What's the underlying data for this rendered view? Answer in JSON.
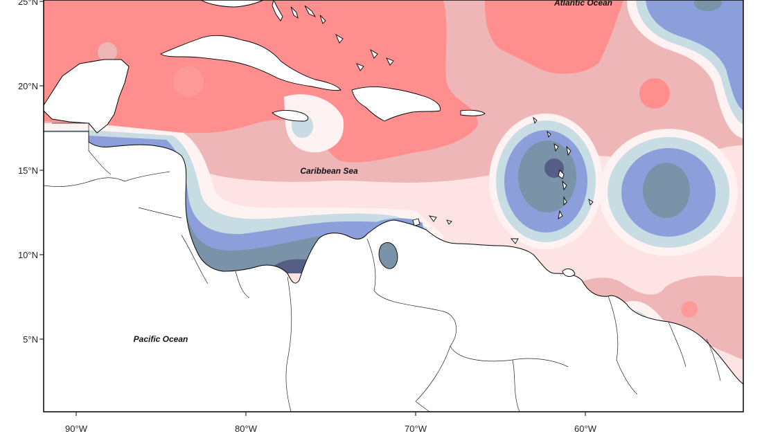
{
  "map": {
    "x_ticks": [
      "90°W",
      "80°W",
      "70°W",
      "60°W"
    ],
    "y_ticks": [
      "25°N",
      "20°N",
      "15°N",
      "10°N",
      "5°N"
    ],
    "labels": {
      "atlantic": "Atlantic Ocean",
      "caribbean": "Caribbean Sea",
      "pacific": "Pacific Ocean"
    },
    "colors": {
      "strong_positive": "#ff8f8f",
      "positive": "#eeb6b6",
      "weak_positive": "#fde3e4",
      "near_zero": "#fff2f2",
      "weak_negative": "#c8dde3",
      "negative": "#8d9fdb",
      "strong_negative": "#7a93a8",
      "very_negative": "#555f85",
      "land": "#ffffff"
    }
  }
}
